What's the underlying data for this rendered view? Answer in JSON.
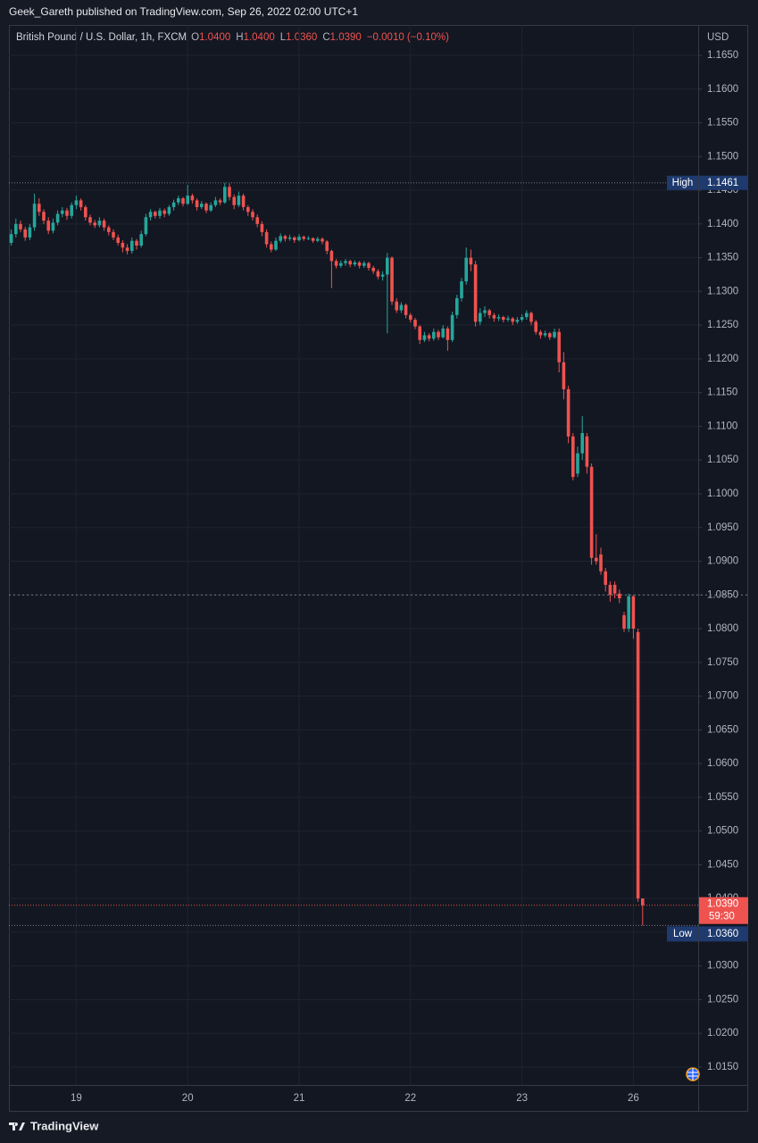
{
  "header": {
    "publisher": "Geek_Gareth published on TradingView.com, Sep 26, 2022 02:00 UTC+1"
  },
  "footer": {
    "brand": "TradingView"
  },
  "chart_data": {
    "type": "candlestick",
    "symbol": "British Pound / U.S. Dollar, 1h, FXCM",
    "legend": {
      "o": "O",
      "open": "1.0400",
      "h": "H",
      "high": "1.0400",
      "l": "L",
      "low": "1.0360",
      "c": "C",
      "close": "1.0390",
      "change": "−0.0010 (−0.10%)"
    },
    "currency": "USD",
    "up_color": "#26a69a",
    "down_color": "#ef5350",
    "grid": true,
    "ylim": [
      1.01235,
      1.1695
    ],
    "yticks": [
      {
        "value": 1.015,
        "label": "1.0150"
      },
      {
        "value": 1.02,
        "label": "1.0200"
      },
      {
        "value": 1.025,
        "label": "1.0250"
      },
      {
        "value": 1.03,
        "label": "1.0300"
      },
      {
        "value": 1.035,
        "label": "1.0350"
      },
      {
        "value": 1.04,
        "label": "1.0400"
      },
      {
        "value": 1.045,
        "label": "1.0450"
      },
      {
        "value": 1.05,
        "label": "1.0500"
      },
      {
        "value": 1.055,
        "label": "1.0550"
      },
      {
        "value": 1.06,
        "label": "1.0600"
      },
      {
        "value": 1.065,
        "label": "1.0650"
      },
      {
        "value": 1.07,
        "label": "1.0700"
      },
      {
        "value": 1.075,
        "label": "1.0750"
      },
      {
        "value": 1.08,
        "label": "1.0800"
      },
      {
        "value": 1.085,
        "label": "1.0850"
      },
      {
        "value": 1.09,
        "label": "1.0900"
      },
      {
        "value": 1.095,
        "label": "1.0950"
      },
      {
        "value": 1.1,
        "label": "1.1000"
      },
      {
        "value": 1.105,
        "label": "1.1050"
      },
      {
        "value": 1.11,
        "label": "1.1100"
      },
      {
        "value": 1.115,
        "label": "1.1150"
      },
      {
        "value": 1.12,
        "label": "1.1200"
      },
      {
        "value": 1.125,
        "label": "1.1250"
      },
      {
        "value": 1.13,
        "label": "1.1300"
      },
      {
        "value": 1.135,
        "label": "1.1350"
      },
      {
        "value": 1.14,
        "label": "1.1400"
      },
      {
        "value": 1.145,
        "label": "1.1450"
      },
      {
        "value": 1.15,
        "label": "1.1500"
      },
      {
        "value": 1.155,
        "label": "1.1550"
      },
      {
        "value": 1.16,
        "label": "1.1600"
      },
      {
        "value": 1.165,
        "label": "1.1650"
      }
    ],
    "categories": [
      null,
      null,
      null,
      null,
      null,
      null,
      null,
      null,
      null,
      null,
      null,
      null,
      null,
      null,
      "19",
      null,
      null,
      null,
      null,
      null,
      null,
      null,
      null,
      null,
      null,
      null,
      null,
      null,
      null,
      null,
      null,
      null,
      null,
      null,
      null,
      null,
      null,
      null,
      "20",
      null,
      null,
      null,
      null,
      null,
      null,
      null,
      null,
      null,
      null,
      null,
      null,
      null,
      null,
      null,
      null,
      null,
      null,
      null,
      null,
      null,
      null,
      null,
      "21",
      null,
      null,
      null,
      null,
      null,
      null,
      null,
      null,
      null,
      null,
      null,
      null,
      null,
      null,
      null,
      null,
      null,
      null,
      null,
      null,
      null,
      null,
      null,
      "22",
      null,
      null,
      null,
      null,
      null,
      null,
      null,
      null,
      null,
      null,
      null,
      null,
      null,
      null,
      null,
      null,
      null,
      null,
      null,
      null,
      null,
      null,
      null,
      "23",
      null,
      null,
      null,
      null,
      null,
      null,
      null,
      null,
      null,
      null,
      null,
      null,
      null,
      null,
      null,
      null,
      null,
      null,
      null,
      null,
      null,
      null,
      null,
      "26",
      null,
      null
    ],
    "ohlc": [
      [
        1.1372,
        1.1392,
        1.1368,
        1.1385
      ],
      [
        1.1385,
        1.1408,
        1.138,
        1.14
      ],
      [
        1.14,
        1.1405,
        1.1388,
        1.1392
      ],
      [
        1.1392,
        1.1396,
        1.1375,
        1.138
      ],
      [
        1.138,
        1.14,
        1.1376,
        1.1395
      ],
      [
        1.1395,
        1.1445,
        1.139,
        1.143
      ],
      [
        1.143,
        1.1438,
        1.1412,
        1.1418
      ],
      [
        1.1418,
        1.1422,
        1.14,
        1.1405
      ],
      [
        1.1405,
        1.141,
        1.1385,
        1.139
      ],
      [
        1.139,
        1.1408,
        1.1386,
        1.1402
      ],
      [
        1.1402,
        1.142,
        1.1398,
        1.1415
      ],
      [
        1.1415,
        1.1425,
        1.141,
        1.142
      ],
      [
        1.142,
        1.1424,
        1.1406,
        1.1412
      ],
      [
        1.1412,
        1.1432,
        1.1408,
        1.1428
      ],
      [
        1.1428,
        1.1442,
        1.1422,
        1.1435
      ],
      [
        1.1435,
        1.1438,
        1.142,
        1.1425
      ],
      [
        1.1425,
        1.1428,
        1.1405,
        1.141
      ],
      [
        1.141,
        1.1414,
        1.1398,
        1.1402
      ],
      [
        1.1402,
        1.1406,
        1.1394,
        1.1398
      ],
      [
        1.1398,
        1.141,
        1.1395,
        1.1405
      ],
      [
        1.1405,
        1.1408,
        1.139,
        1.1395
      ],
      [
        1.1395,
        1.1398,
        1.1383,
        1.1388
      ],
      [
        1.1388,
        1.1392,
        1.1376,
        1.138
      ],
      [
        1.138,
        1.1384,
        1.1368,
        1.1372
      ],
      [
        1.1372,
        1.1376,
        1.1358,
        1.1365
      ],
      [
        1.1365,
        1.137,
        1.1355,
        1.136
      ],
      [
        1.136,
        1.138,
        1.1356,
        1.1375
      ],
      [
        1.1375,
        1.1378,
        1.1362,
        1.1368
      ],
      [
        1.1368,
        1.139,
        1.1365,
        1.1385
      ],
      [
        1.1385,
        1.1415,
        1.1382,
        1.141
      ],
      [
        1.141,
        1.1422,
        1.1405,
        1.1418
      ],
      [
        1.1418,
        1.142,
        1.1408,
        1.1412
      ],
      [
        1.1412,
        1.1424,
        1.1408,
        1.142
      ],
      [
        1.142,
        1.1423,
        1.141,
        1.1415
      ],
      [
        1.1415,
        1.1428,
        1.1412,
        1.1425
      ],
      [
        1.1425,
        1.1436,
        1.142,
        1.1432
      ],
      [
        1.1432,
        1.1442,
        1.1428,
        1.1438
      ],
      [
        1.1438,
        1.144,
        1.1426,
        1.143
      ],
      [
        1.143,
        1.1458,
        1.1428,
        1.1442
      ],
      [
        1.1442,
        1.1445,
        1.143,
        1.1435
      ],
      [
        1.1435,
        1.1438,
        1.142,
        1.1425
      ],
      [
        1.1425,
        1.1434,
        1.1422,
        1.143
      ],
      [
        1.143,
        1.1432,
        1.1416,
        1.142
      ],
      [
        1.142,
        1.1432,
        1.1418,
        1.1428
      ],
      [
        1.1428,
        1.144,
        1.1425,
        1.1435
      ],
      [
        1.1435,
        1.1438,
        1.1428,
        1.1432
      ],
      [
        1.1432,
        1.1461,
        1.143,
        1.1455
      ],
      [
        1.1455,
        1.146,
        1.1435,
        1.144
      ],
      [
        1.144,
        1.1444,
        1.1422,
        1.1428
      ],
      [
        1.1428,
        1.1448,
        1.1425,
        1.1442
      ],
      [
        1.1442,
        1.1445,
        1.142,
        1.1425
      ],
      [
        1.1425,
        1.1428,
        1.1412,
        1.1418
      ],
      [
        1.1418,
        1.1422,
        1.1405,
        1.141
      ],
      [
        1.141,
        1.1414,
        1.1395,
        1.14
      ],
      [
        1.14,
        1.1404,
        1.1382,
        1.1388
      ],
      [
        1.1388,
        1.1392,
        1.1365,
        1.137
      ],
      [
        1.137,
        1.1374,
        1.1358,
        1.1362
      ],
      [
        1.1362,
        1.138,
        1.136,
        1.1375
      ],
      [
        1.1375,
        1.1386,
        1.1372,
        1.1382
      ],
      [
        1.1382,
        1.1384,
        1.1374,
        1.1378
      ],
      [
        1.1378,
        1.1384,
        1.1375,
        1.138
      ],
      [
        1.138,
        1.1382,
        1.1372,
        1.1376
      ],
      [
        1.1376,
        1.1385,
        1.1374,
        1.1381
      ],
      [
        1.1381,
        1.1383,
        1.1375,
        1.1378
      ],
      [
        1.1378,
        1.1382,
        1.1376,
        1.1379
      ],
      [
        1.1379,
        1.138,
        1.1372,
        1.1375
      ],
      [
        1.1375,
        1.1381,
        1.1373,
        1.1378
      ],
      [
        1.1378,
        1.138,
        1.137,
        1.1374
      ],
      [
        1.1374,
        1.1376,
        1.1355,
        1.136
      ],
      [
        1.136,
        1.1362,
        1.1305,
        1.1345
      ],
      [
        1.1345,
        1.1348,
        1.1334,
        1.1338
      ],
      [
        1.1338,
        1.1346,
        1.1335,
        1.1342
      ],
      [
        1.1342,
        1.1348,
        1.1338,
        1.1345
      ],
      [
        1.1345,
        1.1347,
        1.1336,
        1.134
      ],
      [
        1.134,
        1.1346,
        1.1337,
        1.1343
      ],
      [
        1.1343,
        1.1345,
        1.1334,
        1.1338
      ],
      [
        1.1338,
        1.1345,
        1.1335,
        1.1342
      ],
      [
        1.1342,
        1.1344,
        1.1331,
        1.1335
      ],
      [
        1.1335,
        1.1338,
        1.1326,
        1.133
      ],
      [
        1.133,
        1.1333,
        1.1318,
        1.1322
      ],
      [
        1.1322,
        1.133,
        1.1316,
        1.1325
      ],
      [
        1.1325,
        1.1357,
        1.1238,
        1.135
      ],
      [
        1.135,
        1.1352,
        1.128,
        1.1285
      ],
      [
        1.1285,
        1.129,
        1.1268,
        1.1272
      ],
      [
        1.1272,
        1.1284,
        1.1268,
        1.128
      ],
      [
        1.128,
        1.1282,
        1.126,
        1.1265
      ],
      [
        1.1265,
        1.1268,
        1.1254,
        1.1258
      ],
      [
        1.1258,
        1.1261,
        1.1244,
        1.1248
      ],
      [
        1.1248,
        1.125,
        1.1222,
        1.1228
      ],
      [
        1.1228,
        1.124,
        1.1225,
        1.1235
      ],
      [
        1.1235,
        1.1238,
        1.1226,
        1.123
      ],
      [
        1.123,
        1.1245,
        1.1227,
        1.124
      ],
      [
        1.124,
        1.1243,
        1.1228,
        1.1232
      ],
      [
        1.1232,
        1.125,
        1.123,
        1.1245
      ],
      [
        1.1245,
        1.1248,
        1.1212,
        1.1228
      ],
      [
        1.1228,
        1.127,
        1.1225,
        1.1265
      ],
      [
        1.1265,
        1.1295,
        1.126,
        1.129
      ],
      [
        1.129,
        1.132,
        1.1285,
        1.1315
      ],
      [
        1.1315,
        1.1365,
        1.131,
        1.135
      ],
      [
        1.135,
        1.1362,
        1.133,
        1.134
      ],
      [
        1.134,
        1.1345,
        1.1248,
        1.1255
      ],
      [
        1.1255,
        1.1275,
        1.125,
        1.1268
      ],
      [
        1.1268,
        1.1278,
        1.1262,
        1.1272
      ],
      [
        1.1272,
        1.1274,
        1.126,
        1.1265
      ],
      [
        1.1265,
        1.1268,
        1.1255,
        1.126
      ],
      [
        1.126,
        1.1266,
        1.1256,
        1.1262
      ],
      [
        1.1262,
        1.1264,
        1.1254,
        1.1258
      ],
      [
        1.1258,
        1.1264,
        1.1255,
        1.126
      ],
      [
        1.126,
        1.1262,
        1.125,
        1.1255
      ],
      [
        1.1255,
        1.1262,
        1.1252,
        1.1258
      ],
      [
        1.1258,
        1.1266,
        1.1255,
        1.1262
      ],
      [
        1.1262,
        1.1272,
        1.1258,
        1.1268
      ],
      [
        1.1268,
        1.127,
        1.125,
        1.1255
      ],
      [
        1.1255,
        1.1258,
        1.1236,
        1.124
      ],
      [
        1.124,
        1.1243,
        1.123,
        1.1235
      ],
      [
        1.1235,
        1.1242,
        1.1232,
        1.1238
      ],
      [
        1.1238,
        1.124,
        1.1228,
        1.1232
      ],
      [
        1.1232,
        1.1245,
        1.123,
        1.124
      ],
      [
        1.124,
        1.1245,
        1.118,
        1.1195
      ],
      [
        1.1195,
        1.121,
        1.114,
        1.1155
      ],
      [
        1.1155,
        1.116,
        1.1075,
        1.1085
      ],
      [
        1.1085,
        1.109,
        1.102,
        1.1025
      ],
      [
        1.103,
        1.107,
        1.1025,
        1.106
      ],
      [
        1.106,
        1.1115,
        1.105,
        1.109
      ],
      [
        1.1085,
        1.109,
        1.103,
        1.104
      ],
      [
        1.104,
        1.1045,
        1.0895,
        1.0905
      ],
      [
        1.0905,
        1.094,
        1.0895,
        1.09
      ],
      [
        1.091,
        1.092,
        1.088,
        1.0885
      ],
      [
        1.0885,
        1.089,
        1.0855,
        1.0865
      ],
      [
        1.0865,
        1.087,
        1.084,
        1.085
      ],
      [
        1.0865,
        1.087,
        1.0845,
        1.0852
      ],
      [
        1.0852,
        1.0858,
        1.0838,
        1.0845
      ],
      [
        1.082,
        1.0825,
        1.0795,
        1.08
      ],
      [
        1.08,
        1.0852,
        1.0795,
        1.0848
      ],
      [
        1.0848,
        1.085,
        1.0785,
        1.08
      ],
      [
        1.0795,
        1.08,
        1.0395,
        1.04
      ],
      [
        1.04,
        1.04,
        1.036,
        1.039
      ]
    ],
    "high": {
      "label": "High",
      "value": 1.1461
    },
    "low": {
      "label": "Low",
      "value": 1.036,
      "value_label": "1.0360"
    },
    "last_price": {
      "value": 1.039,
      "value_label": "1.0390",
      "countdown": "59:30"
    },
    "price_line": 1.085
  }
}
